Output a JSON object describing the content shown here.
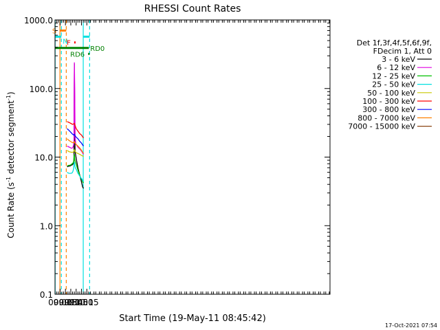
{
  "chart_data": {
    "type": "line",
    "title": "RHESSI Count Rates",
    "xlabel": "Start Time (19-May-11 08:45:42)",
    "ylabel_main": "Count Rate (s",
    "ylabel_sup1": "-1",
    "ylabel_mid": " detector segment",
    "ylabel_sup2": "-1",
    "ylabel_end": ")",
    "y_scale": "log",
    "ylim": [
      0.1,
      1000
    ],
    "y_ticks": [
      {
        "value": 1000,
        "label": "1000.0"
      },
      {
        "value": 100,
        "label": "100.0"
      },
      {
        "value": 10,
        "label": "10.0"
      },
      {
        "value": 1,
        "label": "1.0"
      },
      {
        "value": 0.1,
        "label": "0.1"
      }
    ],
    "xlim_minutes": [
      525.7,
      1297.0
    ],
    "x_ticks": [
      {
        "minute": 540,
        "label": "09:00"
      },
      {
        "minute": 555,
        "label": "09:15"
      },
      {
        "minute": 570,
        "label": "09:30"
      },
      {
        "minute": 585,
        "label": "09:45"
      },
      {
        "minute": 600,
        "label": "10:00"
      },
      {
        "minute": 615,
        "label": "10:15"
      }
    ],
    "legend": {
      "placement": "right",
      "header": [
        "Det 1f,3f,4f,5f,6f,9f,",
        "FDecim 1, Att 0"
      ]
    },
    "series": [
      {
        "name": "3 - 6 keV",
        "color": "#000000",
        "x": [
          559.7,
          562,
          565,
          568,
          571,
          574,
          576,
          578,
          579,
          579.5,
          580,
          581,
          582,
          584,
          586,
          588,
          590,
          592,
          595,
          598,
          601,
          603,
          604,
          605.9
        ],
        "y": [
          7.2,
          7.3,
          7.4,
          7.4,
          7.6,
          7.7,
          7.9,
          8.1,
          9,
          50,
          230,
          40,
          12,
          10.5,
          9,
          8,
          7,
          6.3,
          5.5,
          4.8,
          4.1,
          3.7,
          3.6,
          3.5
        ]
      },
      {
        "name": "6 - 12 keV",
        "color": "#e000e0",
        "x": [
          559.7,
          562,
          565,
          568,
          571,
          574,
          576,
          578,
          579,
          579.5,
          580,
          581,
          582,
          584,
          586,
          588,
          590,
          592,
          595,
          598,
          601,
          603,
          604,
          605.9
        ],
        "y": [
          14.5,
          14.3,
          14,
          13.8,
          13.5,
          13.5,
          14,
          15,
          18,
          120,
          240,
          90,
          20,
          15.5,
          15,
          14.5,
          14,
          13.6,
          13.2,
          12.6,
          12,
          11.5,
          11.2,
          11
        ]
      },
      {
        "name": "12 - 25 keV",
        "color": "#00c000",
        "x": [
          559.7,
          562,
          565,
          568,
          571,
          574,
          576,
          578,
          579,
          580,
          581,
          582,
          584,
          586,
          588,
          590,
          592,
          595,
          598,
          601,
          603,
          604,
          605.9
        ],
        "y": [
          7.5,
          7.5,
          7.6,
          7.6,
          7.8,
          8,
          8.2,
          8.6,
          10,
          11,
          9.5,
          8.8,
          8.2,
          7.6,
          7,
          6.5,
          6,
          5.4,
          5,
          4.7,
          4.4,
          4.3,
          4.2
        ]
      },
      {
        "name": "25 - 50 keV",
        "color": "#00e0e0",
        "x": [
          559.7,
          562,
          565,
          568,
          571,
          574,
          576,
          578,
          579,
          580,
          581,
          582,
          584,
          586,
          588,
          590,
          592,
          595,
          598,
          601,
          603,
          604,
          605.9
        ],
        "y": [
          6,
          5.9,
          5.8,
          5.8,
          5.8,
          5.9,
          6.2,
          6.8,
          7.8,
          8.5,
          7.6,
          7.2,
          6.8,
          6.5,
          6.1,
          5.8,
          5.6,
          5.3,
          5,
          4.8,
          4.6,
          4.5,
          4.4
        ]
      },
      {
        "name": "50 - 100 keV",
        "color": "#c8c800",
        "x": [
          559.7,
          565,
          570,
          575,
          578,
          580,
          582,
          585,
          590,
          595,
          600,
          604,
          605.9
        ],
        "y": [
          12.5,
          12,
          11.8,
          11.7,
          12,
          12.8,
          12.2,
          11.6,
          11.3,
          11,
          10.6,
          10.3,
          10.2
        ]
      },
      {
        "name": "100 - 300 keV",
        "color": "#ff0000",
        "x": [
          559.7,
          565,
          570,
          575,
          578,
          580,
          582,
          585,
          590,
          595,
          600,
          604,
          605.9
        ],
        "y": [
          33,
          32,
          31,
          30,
          30.5,
          31,
          29,
          26,
          24,
          22,
          21,
          19.5,
          19
        ]
      },
      {
        "name": "300 - 800 keV",
        "color": "#0000ff",
        "x": [
          559.7,
          565,
          570,
          575,
          578,
          580,
          582,
          585,
          590,
          595,
          600,
          604,
          605.9
        ],
        "y": [
          26,
          24.5,
          23,
          21.5,
          21,
          21.5,
          20.5,
          19.5,
          18.5,
          17,
          16,
          14.8,
          14.5
        ]
      },
      {
        "name": "800 - 7000 keV",
        "color": "#ff8000",
        "x": [
          559.7,
          565,
          570,
          575,
          578,
          580,
          582,
          585,
          590,
          595,
          600,
          604,
          605.9
        ],
        "y": [
          18.5,
          17.5,
          16.8,
          16.2,
          16.3,
          16.8,
          16,
          15.3,
          14.5,
          13.6,
          12.6,
          11.6,
          11.3
        ]
      },
      {
        "name": "7000 - 15000 keV",
        "color": "#8b4513",
        "x": [],
        "y": []
      }
    ],
    "attenuator_bars": [
      {
        "label": "S",
        "color": "#ff8000",
        "x0": 539.6,
        "x1": 557.3,
        "value": 700,
        "label_side": "left"
      },
      {
        "label": "N",
        "color": "#00e0e0",
        "x0": 525.7,
        "x1": 543.6,
        "value": 570,
        "label_side": "right"
      },
      {
        "label": "N",
        "color": "#00e0e0",
        "x0": 604.9,
        "x1": 622.8,
        "value": 570,
        "label_side": "none"
      },
      {
        "label": "F",
        "color": "#ff0000",
        "x0": 579.5,
        "x1": 583.5,
        "value": 470,
        "label_side": "left"
      },
      {
        "label": "RD0",
        "color": "#008000",
        "x0": 525.7,
        "x1": 620.7,
        "value": 390,
        "label_side": "right"
      },
      {
        "label": "RD6",
        "color": "#008000",
        "x0": 618.6,
        "x1": 622.8,
        "value": 320,
        "label_side": "left"
      }
    ],
    "vertical_markers": [
      {
        "minute": 526.1,
        "color": "#00e0e0",
        "style": "solid"
      },
      {
        "minute": 539.6,
        "color": "#ff8000",
        "style": "solid"
      },
      {
        "minute": 543.6,
        "color": "#00e0e0",
        "style": "dashed"
      },
      {
        "minute": 557.3,
        "color": "#ff8000",
        "style": "dashed"
      },
      {
        "minute": 604.9,
        "color": "#00e0e0",
        "style": "solid"
      },
      {
        "minute": 622.8,
        "color": "#00e0e0",
        "style": "dashed"
      }
    ]
  },
  "footer": {
    "timestamp": "17-Oct-2021 07:54"
  }
}
